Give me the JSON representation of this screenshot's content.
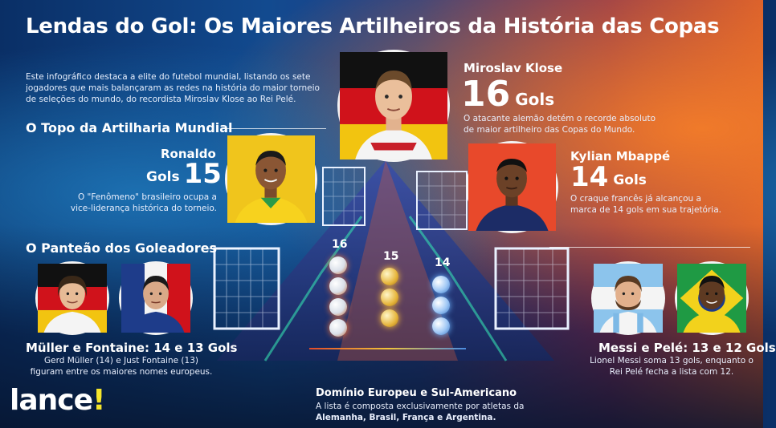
{
  "title": "Lendas do Gol: Os Maiores Artilheiros da História das Copas",
  "intro": "Este infográfico destaca a elite do futebol mundial, listando os sete jogadores que mais balançaram as redes na história do maior torneio de seleções do mundo, do recordista Miroslav Klose ao Rei Pelé.",
  "sections": {
    "top": "O Topo da Artilharia Mundial",
    "pantheon": "O Panteão dos Goleadores"
  },
  "players": {
    "klose": {
      "name": "Miroslav Klose",
      "goals": "16",
      "gols_label": "Gols",
      "desc": "O atacante alemão detém o recorde absoluto de maior artilheiro das Copas do Mundo."
    },
    "ronaldo": {
      "name": "Ronaldo",
      "goals": "15",
      "gols_label": "Gols",
      "desc": "O \"Fenômeno\" brasileiro ocupa a vice-liderança histórica do torneio."
    },
    "mbappe": {
      "name": "Kylian Mbappé",
      "goals": "14",
      "gols_label": "Gols",
      "desc": "O craque francês já alcançou a marca de 14 gols em sua trajetória."
    }
  },
  "groups": {
    "europe": {
      "title": "Müller e Fontaine: 14 e 13 Gols",
      "desc": "Gerd Müller (14) e Just Fontaine (13) figuram entre os maiores nomes europeus."
    },
    "southamerica": {
      "title": "Messi e Pelé: 13 e 12 Gols",
      "desc": "Lionel Messi soma 13 gols, enquanto o Rei Pelé fecha a lista com 12."
    }
  },
  "podium": {
    "labels": [
      "16",
      "15",
      "14"
    ]
  },
  "footer": {
    "title": "Domínio Europeu e Sul-Americano",
    "desc_prefix": "A lista é composta exclusivamente por atletas da",
    "desc_strong": "Alemanha, Brasil, França e Argentina."
  },
  "logo": {
    "text": "lance",
    "mark": "!"
  },
  "colors": {
    "accent_orange": "#f07a2a",
    "deep_blue": "#0a2f66",
    "logo_yellow": "#f5e52b"
  }
}
